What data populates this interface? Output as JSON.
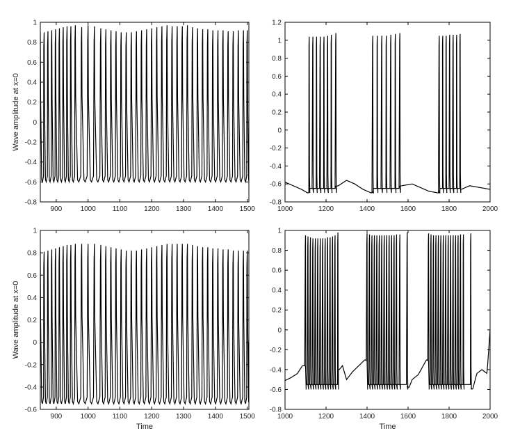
{
  "chart_data": [
    {
      "type": "line",
      "title": "",
      "xlabel": "",
      "ylabel": "Wave amplitude at x=0",
      "xlim": [
        850,
        1505
      ],
      "ylim": [
        -0.8,
        1.0
      ],
      "xticks": [
        "900",
        "1000",
        "1100",
        "1200",
        "1300",
        "1400",
        "1500"
      ],
      "yticks": [
        "-0.8",
        "-0.6",
        "-0.4",
        "-0.2",
        "0",
        "0.2",
        "0.4",
        "0.6",
        "0.8",
        "1"
      ],
      "series": [
        {
          "x": [
            850,
            862,
            874,
            886,
            898,
            910,
            922,
            934,
            946,
            960,
            980,
            1000,
            1020,
            1040,
            1056,
            1072,
            1088,
            1104,
            1120,
            1136,
            1152,
            1168,
            1184,
            1200,
            1216,
            1232,
            1248,
            1264,
            1280,
            1296,
            1312,
            1328,
            1344,
            1360,
            1376,
            1392,
            1408,
            1424,
            1440,
            1456,
            1472,
            1488,
            1500
          ],
          "y": [
            0.9,
            0.9,
            0.91,
            0.92,
            0.93,
            0.94,
            0.95,
            0.96,
            0.96,
            0.97,
            0.95,
            0.97,
            0.96,
            0.94,
            0.93,
            0.92,
            0.91,
            0.9,
            0.9,
            0.9,
            0.91,
            0.92,
            0.93,
            0.94,
            0.95,
            0.96,
            0.97,
            0.96,
            0.96,
            0.96,
            0.97,
            0.95,
            0.94,
            0.93,
            0.93,
            0.92,
            0.92,
            0.92,
            0.91,
            0.91,
            0.92,
            0.92,
            0.92
          ],
          "baseline": -0.6,
          "end_value": -0.53,
          "color": "#000000"
        }
      ],
      "grid": false,
      "legend": "none"
    },
    {
      "type": "line",
      "title": "",
      "xlabel": "",
      "ylabel": "",
      "xlim": [
        1000,
        2000
      ],
      "ylim": [
        -0.8,
        1.2
      ],
      "xticks": [
        "1000",
        "1200",
        "1400",
        "1600",
        "1800",
        "2000"
      ],
      "yticks": [
        "-0.8",
        "-0.6",
        "-0.4",
        "-0.2",
        "0",
        "0.2",
        "0.4",
        "0.6",
        "0.8",
        "1",
        "1.2"
      ],
      "bursts": [
        {
          "spikes_x": [
            1118,
            1136,
            1154,
            1172,
            1190,
            1208,
            1226,
            1248
          ],
          "peaks": [
            1.04,
            1.04,
            1.04,
            1.04,
            1.04,
            1.05,
            1.06,
            1.08
          ]
        },
        {
          "spikes_x": [
            1428,
            1450,
            1472,
            1494,
            1516,
            1538,
            1560
          ],
          "peaks": [
            1.05,
            1.05,
            1.05,
            1.05,
            1.06,
            1.07,
            1.08
          ]
        },
        {
          "spikes_x": [
            1752,
            1769,
            1786,
            1803,
            1820,
            1837,
            1854
          ],
          "peaks": [
            1.05,
            1.05,
            1.05,
            1.06,
            1.06,
            1.06,
            1.07
          ]
        }
      ],
      "trough": -0.7,
      "quiescent_x": [
        1000,
        1040,
        1080,
        1110,
        1260,
        1300,
        1340,
        1380,
        1420,
        1570,
        1620,
        1660,
        1700,
        1745,
        1860,
        1900,
        1950,
        2000
      ],
      "quiescent_y": [
        -0.58,
        -0.62,
        -0.66,
        -0.7,
        -0.62,
        -0.56,
        -0.6,
        -0.66,
        -0.7,
        -0.62,
        -0.6,
        -0.64,
        -0.68,
        -0.7,
        -0.66,
        -0.62,
        -0.64,
        -0.66
      ],
      "color": "#000000",
      "grid": false,
      "legend": "none"
    },
    {
      "type": "line",
      "title": "",
      "xlabel": "Time",
      "ylabel": "Wave amplitude at x=0",
      "xlim": [
        850,
        1505
      ],
      "ylim": [
        -0.6,
        1.0
      ],
      "xticks": [
        "900",
        "1000",
        "1100",
        "1200",
        "1300",
        "1400",
        "1500"
      ],
      "yticks": [
        "-0.6",
        "-0.4",
        "-0.2",
        "0",
        "0.2",
        "0.4",
        "0.6",
        "0.8",
        "1"
      ],
      "series": [
        {
          "x": [
            850,
            862,
            874,
            886,
            898,
            910,
            922,
            934,
            946,
            960,
            980,
            1000,
            1020,
            1040,
            1056,
            1072,
            1088,
            1104,
            1120,
            1136,
            1152,
            1168,
            1184,
            1200,
            1216,
            1232,
            1248,
            1264,
            1280,
            1296,
            1312,
            1328,
            1344,
            1360,
            1376,
            1392,
            1408,
            1424,
            1440,
            1456,
            1472,
            1488,
            1500
          ],
          "y": [
            0.81,
            0.81,
            0.82,
            0.83,
            0.84,
            0.85,
            0.86,
            0.87,
            0.87,
            0.88,
            0.88,
            0.88,
            0.88,
            0.87,
            0.86,
            0.85,
            0.84,
            0.83,
            0.82,
            0.82,
            0.82,
            0.83,
            0.84,
            0.85,
            0.86,
            0.87,
            0.88,
            0.88,
            0.88,
            0.88,
            0.88,
            0.87,
            0.86,
            0.85,
            0.85,
            0.84,
            0.84,
            0.83,
            0.83,
            0.82,
            0.82,
            0.82,
            0.82
          ],
          "baseline": -0.55,
          "end_value": 0.03,
          "color": "#000000"
        }
      ],
      "grid": false,
      "legend": "none"
    },
    {
      "type": "line",
      "title": "",
      "xlabel": "Time",
      "ylabel": "",
      "xlim": [
        1000,
        2000
      ],
      "ylim": [
        -0.8,
        1.0
      ],
      "xticks": [
        "1000",
        "1200",
        "1400",
        "1600",
        "1800",
        "2000"
      ],
      "yticks": [
        "-0.8",
        "-0.6",
        "-0.4",
        "-0.2",
        "0",
        "0.2",
        "0.4",
        "0.6",
        "0.8",
        "1"
      ],
      "bursts": [
        {
          "spikes_x": [
            1100,
            1112,
            1124,
            1136,
            1148,
            1160,
            1172,
            1184,
            1196,
            1208,
            1220,
            1232,
            1244,
            1258
          ],
          "peaks": [
            0.95,
            0.94,
            0.93,
            0.92,
            0.92,
            0.92,
            0.92,
            0.92,
            0.92,
            0.93,
            0.93,
            0.94,
            0.95,
            0.98
          ]
        },
        {
          "spikes_x": [
            1400,
            1412,
            1424,
            1436,
            1448,
            1460,
            1472,
            1484,
            1496,
            1508,
            1520,
            1532,
            1544,
            1560,
            1596
          ],
          "peaks": [
            0.97,
            0.96,
            0.95,
            0.95,
            0.95,
            0.95,
            0.95,
            0.95,
            0.95,
            0.95,
            0.95,
            0.95,
            0.96,
            0.96,
            0.98
          ]
        },
        {
          "spikes_x": [
            1700,
            1712,
            1724,
            1736,
            1748,
            1760,
            1772,
            1784,
            1796,
            1808,
            1820,
            1832,
            1844,
            1856,
            1870,
            1906
          ],
          "peaks": [
            0.97,
            0.96,
            0.95,
            0.95,
            0.95,
            0.95,
            0.95,
            0.95,
            0.95,
            0.95,
            0.95,
            0.95,
            0.95,
            0.96,
            0.96,
            0.97
          ]
        }
      ],
      "trough": -0.6,
      "quiescent_x": [
        1000,
        1030,
        1060,
        1085,
        1265,
        1280,
        1300,
        1330,
        1360,
        1390,
        1605,
        1620,
        1650,
        1690,
        1915,
        1935,
        1960,
        1985,
        2000
      ],
      "quiescent_y": [
        -0.51,
        -0.48,
        -0.44,
        -0.36,
        -0.4,
        -0.36,
        -0.5,
        -0.42,
        -0.36,
        -0.3,
        -0.58,
        -0.5,
        -0.45,
        -0.3,
        -0.6,
        -0.44,
        -0.4,
        -0.44,
        0.0
      ],
      "color": "#000000",
      "grid": false,
      "legend": "none"
    }
  ]
}
